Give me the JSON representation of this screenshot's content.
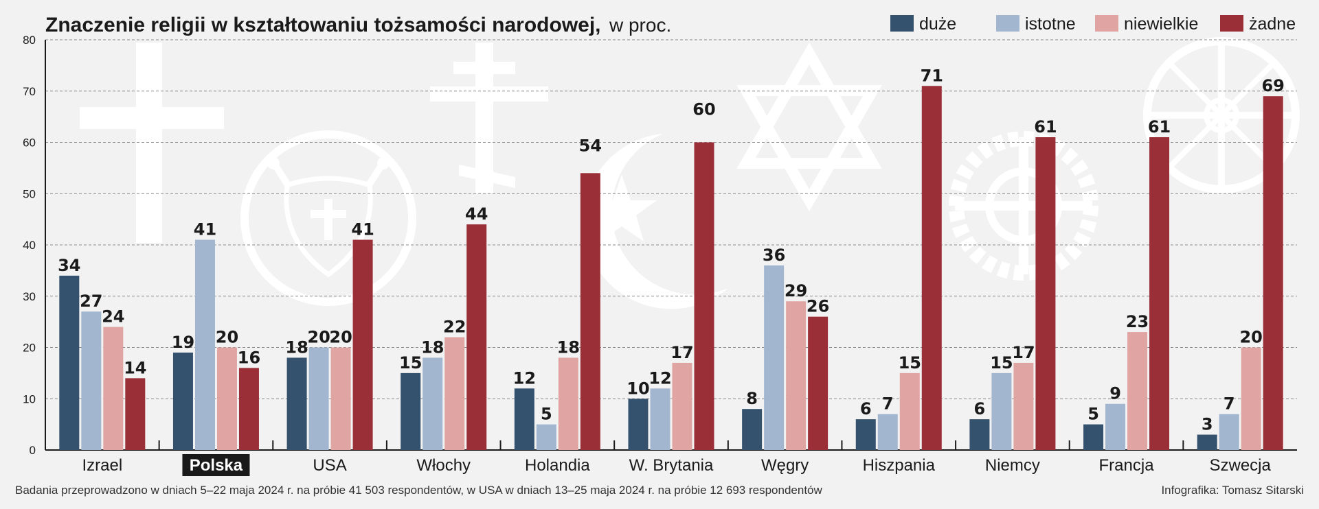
{
  "chart_data": {
    "type": "bar",
    "title": "Znaczenie religii w kształtowaniu tożsamości narodowej,",
    "title_suffix": "w proc.",
    "categories": [
      "Izrael",
      "Polska",
      "USA",
      "Włochy",
      "Holandia",
      "W. Brytania",
      "Węgry",
      "Hiszpania",
      "Niemcy",
      "Francja",
      "Szwecja"
    ],
    "highlighted_category": "Polska",
    "series": [
      {
        "name": "duże",
        "color": "#34526e",
        "values": [
          34,
          19,
          18,
          15,
          12,
          10,
          8,
          6,
          6,
          5,
          3
        ]
      },
      {
        "name": "istotne",
        "color": "#a3b6cf",
        "values": [
          27,
          41,
          20,
          18,
          5,
          12,
          36,
          7,
          15,
          9,
          7
        ]
      },
      {
        "name": "niewielkie",
        "color": "#e0a5a2",
        "values": [
          24,
          20,
          20,
          22,
          18,
          17,
          29,
          15,
          17,
          23,
          20
        ]
      },
      {
        "name": "żadne",
        "color": "#9a2f37",
        "values": [
          14,
          16,
          41,
          44,
          54,
          60,
          26,
          71,
          61,
          61,
          69
        ]
      }
    ],
    "ylim": [
      0,
      80
    ],
    "yticks": [
      0,
      10,
      20,
      30,
      40,
      50,
      60,
      70,
      80
    ],
    "grid": true,
    "legend_position": "top-right"
  },
  "footer": {
    "note": "Badania przeprowadzono w dniach 5–22 maja 2024 r. na próbie 41 503 respondentów, w USA w dniach 13–25 maja 2024 r. na próbie 12 693 respondentów",
    "credit": "Infografika: Tomasz Sitarski"
  },
  "colors": {
    "background": "#f2f2f2",
    "highlight_label_bg": "#1a1a1a",
    "symbols": "#ffffff"
  },
  "background_symbols": [
    "latin-cross-icon",
    "lutheran-rose-icon",
    "orthodox-cross-icon",
    "crescent-star-icon",
    "star-of-david-icon",
    "sun-cross-icon",
    "celtic-sun-icon"
  ]
}
